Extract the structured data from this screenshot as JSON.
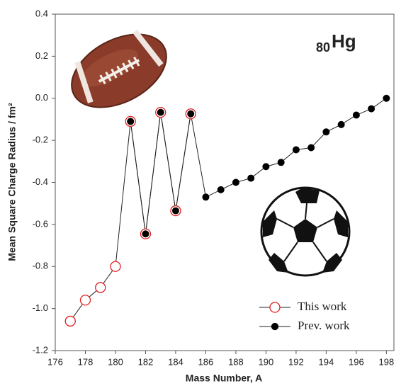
{
  "chart_data": {
    "type": "scatter",
    "annotation": {
      "subscript": "80",
      "text": "Hg"
    },
    "x_label": "Mass Number, A",
    "y_label": "Mean Square Charge Radius / fm²",
    "xlim": [
      176,
      198.5
    ],
    "ylim": [
      -1.2,
      0.4
    ],
    "xticks": [
      176,
      178,
      180,
      182,
      184,
      186,
      188,
      190,
      192,
      194,
      196,
      198
    ],
    "yticks": [
      0.4,
      0.2,
      {
        "value": 0,
        "label": "0.0"
      },
      -0.2,
      -0.4,
      -0.6,
      -0.8,
      {
        "value": -1,
        "label": "-1.0"
      },
      -1.2
    ],
    "series": [
      {
        "name": "This work",
        "color": "#e02020",
        "x": [
          177,
          178,
          179,
          180,
          181,
          182,
          183,
          184,
          185
        ],
        "values": [
          -1.06,
          -0.96,
          -0.9,
          -0.8,
          -0.11,
          -0.645,
          -0.067,
          -0.535,
          -0.074
        ]
      },
      {
        "name": "Prev. work",
        "color": "#000000",
        "x": [
          181,
          182,
          183,
          184,
          185,
          186,
          187,
          188,
          189,
          190,
          191,
          192,
          193,
          194,
          195,
          196,
          197,
          198
        ],
        "values": [
          -0.11,
          -0.645,
          -0.067,
          -0.535,
          -0.074,
          -0.47,
          -0.435,
          -0.4,
          -0.38,
          -0.325,
          -0.305,
          -0.245,
          -0.235,
          -0.16,
          -0.125,
          -0.08,
          -0.05,
          0
        ]
      }
    ]
  }
}
